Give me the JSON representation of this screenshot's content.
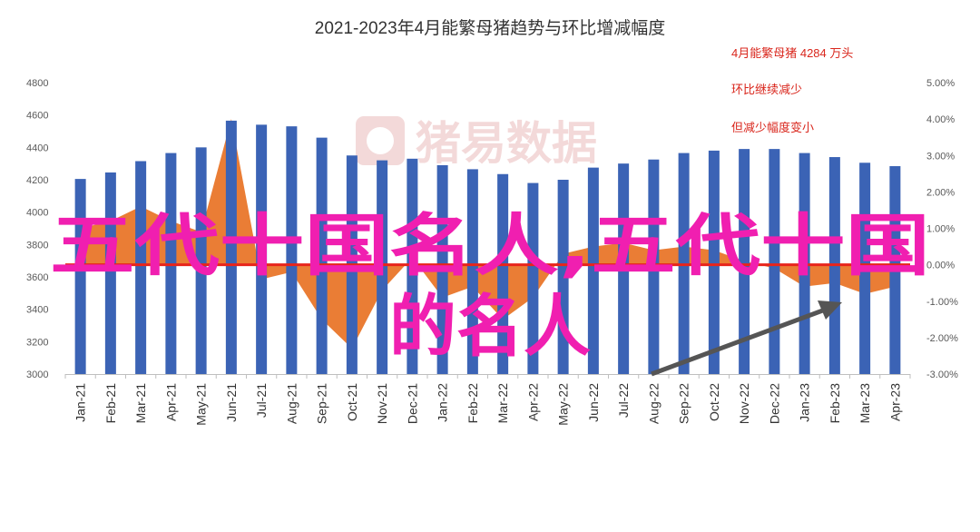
{
  "chart_data": {
    "type": "bar",
    "title": "2021-2023年4月能繁母猪趋势与环比增减幅度",
    "categories": [
      "Jan-21",
      "Feb-21",
      "Mar-21",
      "Apr-21",
      "May-21",
      "Jun-21",
      "Jul-21",
      "Aug-21",
      "Sep-21",
      "Oct-21",
      "Nov-21",
      "Dec-21",
      "Jan-22",
      "Feb-22",
      "Mar-22",
      "Apr-22",
      "May-22",
      "Jun-22",
      "Jul-22",
      "Aug-22",
      "Sep-22",
      "Oct-22",
      "Nov-22",
      "Dec-22",
      "Jan-23",
      "Feb-23",
      "Mar-23",
      "Apr-23"
    ],
    "series": [
      {
        "type": "bar",
        "axis": "left",
        "values": [
          4205,
          4245,
          4315,
          4365,
          4400,
          4565,
          4540,
          4530,
          4460,
          4350,
          4320,
          4330,
          4290,
          4265,
          4235,
          4180,
          4200,
          4275,
          4300,
          4325,
          4365,
          4380,
          4390,
          4390,
          4365,
          4340,
          4305,
          4284
        ]
      },
      {
        "type": "area",
        "axis": "right",
        "values": [
          1.0,
          1.2,
          1.6,
          1.2,
          0.9,
          4.0,
          -0.4,
          -0.2,
          -1.5,
          -2.3,
          -0.7,
          0.2,
          -0.9,
          -0.6,
          -1.5,
          -0.9,
          0.3,
          0.5,
          0.6,
          0.4,
          0.5,
          0.4,
          0.1,
          -0.1,
          -0.6,
          -0.5,
          -0.8,
          -0.6
        ]
      }
    ],
    "yleft": {
      "min": 3000,
      "max": 4800,
      "ticks": [
        "4800",
        "4600",
        "4400",
        "4200",
        "4000",
        "3800",
        "3600",
        "3400",
        "3200",
        "3000"
      ]
    },
    "yright": {
      "min": -3.0,
      "max": 5.0,
      "ticks": [
        "5.00%",
        "4.00%",
        "3.00%",
        "2.00%",
        "1.00%",
        "0.00%",
        "-1.00%",
        "-2.00%",
        "-3.00%"
      ]
    },
    "annotations": [
      "4月能繁母猪 4284 万头",
      "环比继续减少",
      "但减少幅度变小"
    ],
    "grid": false,
    "legend": "none",
    "colors": {
      "bar": "#3b63b5",
      "area": "#ea7d35",
      "zero_line": "#e8241b",
      "arrow": "#555555"
    }
  },
  "watermark": "猪易数据",
  "overlay": {
    "line1": "五代十国名人,五代十国",
    "line2": "的名人"
  }
}
